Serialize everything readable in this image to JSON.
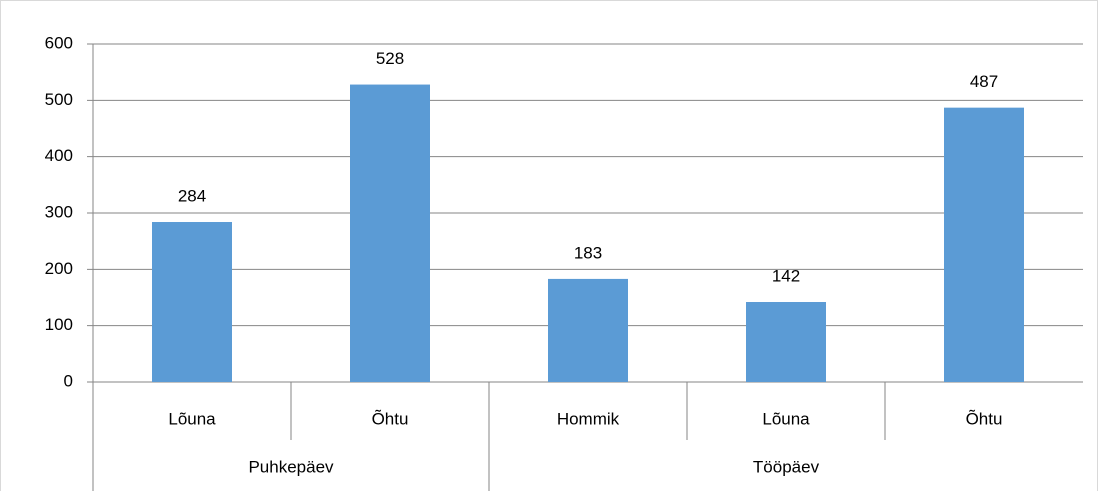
{
  "chart_data": {
    "type": "bar",
    "color": "#5b9bd5",
    "grid": true,
    "data_labels": true,
    "ylim": [
      0,
      600
    ],
    "yticks": [
      0,
      100,
      200,
      300,
      400,
      500,
      600
    ],
    "groups": [
      {
        "name": "Puhkepäev",
        "categories": [
          "Lõuna",
          "Õhtu"
        ],
        "values": [
          284,
          528
        ]
      },
      {
        "name": "Tööpäev",
        "categories": [
          "Hommik",
          "Lõuna",
          "Õhtu"
        ],
        "values": [
          183,
          142,
          487
        ]
      }
    ]
  }
}
